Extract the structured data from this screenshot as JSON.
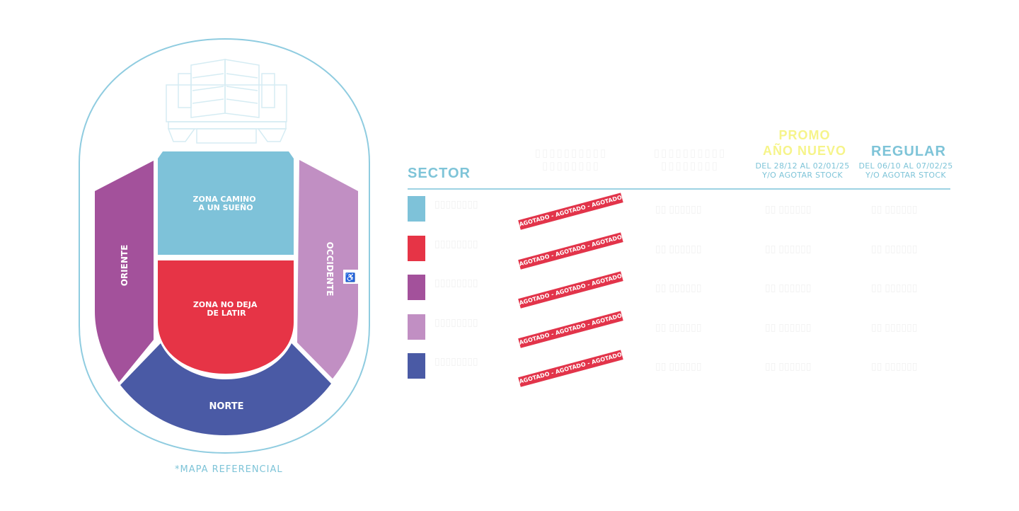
{
  "map": {
    "zones": {
      "camino": "ZONA CAMINO A UN SUEÑO",
      "latir": "ZONA NO DEJA DE LATIR",
      "oriente": "ORIENTE",
      "occidente": "OCCIDENTE",
      "norte": "NORTE"
    },
    "note": "*MAPA REFERENCIAL",
    "colors": {
      "camino": "#7ec2d9",
      "latir": "#e63446",
      "oriente": "#a3519b",
      "occidente": "#c18fc3",
      "norte": "#4a5aa5",
      "outline": "#8fcce0"
    }
  },
  "table": {
    "headers": {
      "sector": "SECTOR",
      "promo_title_1": "PROMO",
      "promo_title_2": "AÑO NUEVO",
      "promo_sub_1": "DEL 28/12 AL 02/01/25",
      "promo_sub_2": "Y/O AGOTAR STOCK",
      "regular_title": "REGULAR",
      "regular_sub_1": "DEL 06/10 AL 07/02/25",
      "regular_sub_2": "Y/O AGOTAR STOCK"
    },
    "sold_out_label": "AGOTADO - AGOTADO - AGOTADO - AGOTADO - AGOTADO",
    "rows": [
      {
        "sector": "camino",
        "color": "#7ec2d9"
      },
      {
        "sector": "latir",
        "color": "#e63446"
      },
      {
        "sector": "oriente",
        "color": "#a3519b"
      },
      {
        "sector": "occidente",
        "color": "#c18fc3"
      },
      {
        "sector": "norte",
        "color": "#4a5aa5"
      }
    ]
  }
}
